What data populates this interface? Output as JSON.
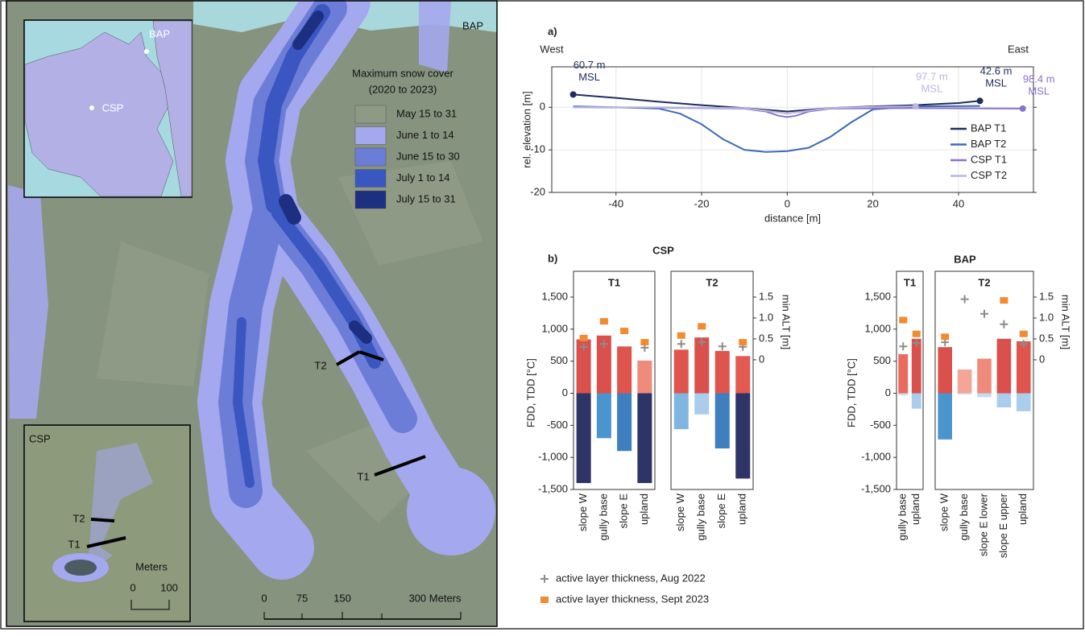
{
  "map": {
    "site_label": "BAP",
    "legend_title": [
      "Maximum snow cover",
      "(2020 to 2023)"
    ],
    "legend": [
      {
        "label": "May 15 to 31",
        "color": "#8e9a86"
      },
      {
        "label": "June 1 to 14",
        "color": "#a4a8ee"
      },
      {
        "label": "June 15 to 30",
        "color": "#6c7dd8"
      },
      {
        "label": "July 1 to 14",
        "color": "#3a56c0"
      },
      {
        "label": "July 15 to 31",
        "color": "#1c2f80"
      }
    ],
    "transects": [
      "T2",
      "T1"
    ],
    "scale": [
      "0",
      "75",
      "150",
      "300 Meters"
    ],
    "overview": {
      "labels": [
        "BAP",
        "CSP"
      ]
    },
    "csp_inset": {
      "title": "CSP",
      "transects": [
        "T2",
        "T1"
      ],
      "scale_title": "Meters",
      "scale": [
        "0",
        "100"
      ]
    }
  },
  "chart_data": [
    {
      "type": "line",
      "label": "a)",
      "west": "West",
      "east": "East",
      "xlabel": "distance  [m]",
      "ylabel": "rel. elevation [m]",
      "xlim": [
        -55,
        57.5
      ],
      "xticks": [
        -40,
        -20,
        0,
        20,
        40
      ],
      "ylim": [
        -20,
        9.5
      ],
      "yticks": [
        -20,
        -10,
        0
      ],
      "grid": true,
      "series": [
        {
          "name": "BAP T1",
          "color": "#1f2d5c",
          "x": [
            -50,
            -40,
            -30,
            -20,
            -10,
            -5,
            0,
            5,
            10,
            20,
            30,
            40,
            45
          ],
          "values": [
            3,
            2.2,
            1.3,
            0.5,
            -0.2,
            -0.6,
            -1,
            -0.6,
            -0.2,
            0.2,
            0.5,
            1,
            1.5
          ]
        },
        {
          "name": "BAP T2",
          "color": "#3d6bb3",
          "x": [
            -50,
            -40,
            -30,
            -25,
            -20,
            -15,
            -10,
            -5,
            0,
            5,
            10,
            15,
            20,
            30,
            45
          ],
          "values": [
            0.2,
            0,
            -0.3,
            -1.5,
            -4,
            -7.5,
            -10,
            -10.5,
            -10.3,
            -9.5,
            -7,
            -3.5,
            -0.5,
            0.2,
            0.3
          ]
        },
        {
          "name": "CSP T1",
          "color": "#8b73c9",
          "x": [
            -50,
            -30,
            -10,
            -5,
            -2,
            0,
            2,
            5,
            10,
            30,
            55
          ],
          "values": [
            0,
            -0.1,
            -0.3,
            -1,
            -2,
            -2.3,
            -2,
            -1,
            -0.3,
            -0.2,
            -0.3
          ]
        },
        {
          "name": "CSP T2",
          "color": "#b9b6e0",
          "x": [
            -50,
            -30,
            -10,
            -5,
            0,
            5,
            10,
            20,
            30
          ],
          "values": [
            0,
            0,
            -0.2,
            -0.8,
            -1.5,
            -0.8,
            -0.2,
            0.1,
            0.2
          ]
        }
      ],
      "annotations": [
        {
          "text": [
            "60.7 m",
            "MSL"
          ],
          "x": -50,
          "y": 3,
          "color": "#1f2d5c"
        },
        {
          "text": [
            "42.6 m",
            "MSL"
          ],
          "x": 45,
          "y": 1.5,
          "color": "#1f2d5c"
        },
        {
          "text": [
            "97.7 m",
            "MSL"
          ],
          "x": 30,
          "y": 0.2,
          "color": "#b9b6e0"
        },
        {
          "text": [
            "98.4 m",
            "MSL"
          ],
          "x": 55,
          "y": -0.3,
          "color": "#8b73c9"
        }
      ]
    },
    {
      "type": "bar",
      "label": "b)",
      "ylabel": "FDD, TDD [°C]",
      "y2label": "min ALT [m]",
      "ylim": [
        -1500,
        1500
      ],
      "yticks": [
        {
          "value": 1500,
          "label": "1,500"
        },
        {
          "value": 1000,
          "label": "1,000"
        },
        500,
        0,
        -500,
        {
          "value": -1000,
          "label": "-1,000"
        },
        {
          "value": -1500,
          "label": "-1,500"
        }
      ],
      "y2lim": [
        -3.1,
        1.5
      ],
      "y2ticks": [
        0,
        0.5,
        {
          "value": 1,
          "label": "1.0"
        },
        1.5
      ],
      "alt_series": [
        {
          "name": "active layer thickness, Aug 2022",
          "color": "#8c8c8c"
        },
        {
          "name": "active layer thickness, Sept 2023",
          "color": "#f28a30"
        }
      ],
      "groups": [
        {
          "name": "CSP",
          "panels": [
            {
              "title": "T1",
              "categories": [
                "slope W",
                "gully base",
                "slope E",
                "upland"
              ],
              "tdd": [
                840,
                900,
                730,
                510
              ],
              "tdd_colors": [
                "#d9504c",
                "#d9504c",
                "#e0544e",
                "#f08a7a"
              ],
              "fdd": [
                -1400,
                -700,
                -900,
                -1400
              ],
              "fdd_colors": [
                "#2e3566",
                "#4b95cf",
                "#3f7fc0",
                "#2e3566"
              ],
              "alt_2022": [
                0.31,
                0.38,
                null,
                0.29
              ],
              "alt_2023": [
                0.52,
                0.92,
                0.69,
                0.42
              ]
            },
            {
              "title": "T2",
              "categories": [
                "slope W",
                "gully base",
                "slope E",
                "upland"
              ],
              "tdd": [
                680,
                870,
                660,
                580
              ],
              "tdd_colors": [
                "#e0544e",
                "#d9504c",
                "#e0544e",
                "#e35a52"
              ],
              "fdd": [
                -560,
                -330,
                -860,
                -1330
              ],
              "fdd_colors": [
                "#7fb6e0",
                "#a9cdea",
                "#3f7fc0",
                "#2e3566"
              ],
              "alt_2022": [
                0.38,
                0.42,
                0.32,
                0.31
              ],
              "alt_2023": [
                0.58,
                0.8,
                null,
                0.42
              ]
            }
          ]
        },
        {
          "name": "BAP",
          "panels": [
            {
              "title": "T1",
              "categories": [
                "gully base",
                "upland"
              ],
              "tdd": [
                610,
                850
              ],
              "tdd_colors": [
                "#ea6a5e",
                "#d9504c"
              ],
              "fdd": [
                -30,
                -240
              ],
              "fdd_colors": [
                "#c4dcef",
                "#a9cdea"
              ],
              "alt_2022": [
                0.32,
                0.4
              ],
              "alt_2023": [
                0.95,
                0.62
              ]
            },
            {
              "title": "T2",
              "categories": [
                "slope W",
                "gully base",
                "slope E lower",
                "slope E upper",
                "upland"
              ],
              "tdd": [
                720,
                370,
                540,
                850,
                810
              ],
              "tdd_colors": [
                "#d9504c",
                "#f4a596",
                "#f08a7a",
                "#d9504c",
                "#e0544e"
              ],
              "fdd": [
                -720,
                -20,
                -60,
                -220,
                -280
              ],
              "fdd_colors": [
                "#4b95cf",
                "#d3e4f2",
                "#c4dcef",
                "#a9cdea",
                "#a9cdea"
              ],
              "alt_2022": [
                0.42,
                1.45,
                1.1,
                0.85,
                0.38
              ],
              "alt_2023": [
                0.55,
                null,
                null,
                1.42,
                0.62
              ]
            }
          ]
        }
      ]
    }
  ]
}
